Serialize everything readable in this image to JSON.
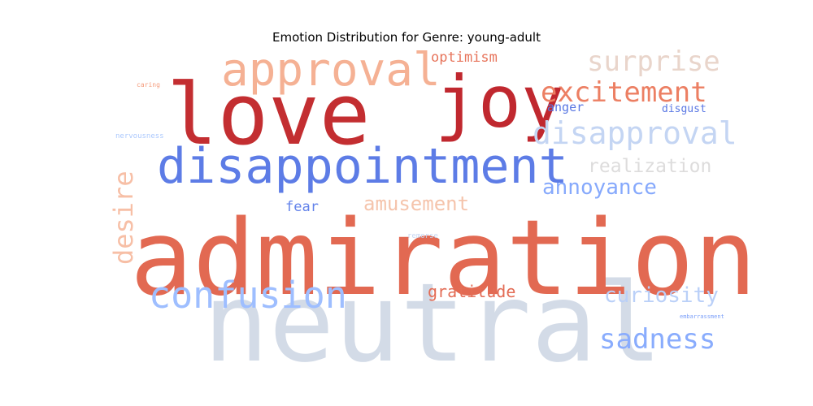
{
  "chart_data": {
    "type": "wordcloud",
    "title": "Emotion Distribution for Genre: young-adult",
    "colormap": "coolwarm",
    "words": [
      {
        "text": "neutral",
        "color": "#d3dbe7"
      },
      {
        "text": "admiration",
        "color": "#e26952"
      },
      {
        "text": "love",
        "color": "#c32e31"
      },
      {
        "text": "disappointment",
        "color": "#5d7ce6"
      },
      {
        "text": "joy",
        "color": "#c0282f"
      },
      {
        "text": "approval",
        "color": "#f5b194"
      },
      {
        "text": "confusion",
        "color": "#9ebeff"
      },
      {
        "text": "excitement",
        "color": "#ec7f63"
      },
      {
        "text": "disapproval",
        "color": "#c4d5f3"
      },
      {
        "text": "surprise",
        "color": "#e9d5cb"
      },
      {
        "text": "sadness",
        "color": "#89acfd"
      },
      {
        "text": "desire",
        "color": "#f7bfa6"
      },
      {
        "text": "annoyance",
        "color": "#86a9fc"
      },
      {
        "text": "curiosity",
        "color": "#bad0f8"
      },
      {
        "text": "amusement",
        "color": "#f5c4ac"
      },
      {
        "text": "realization",
        "color": "#dddcdc"
      },
      {
        "text": "gratitude",
        "color": "#e36c55"
      },
      {
        "text": "optimism",
        "color": "#e7745b"
      },
      {
        "text": "fear",
        "color": "#6282ea"
      },
      {
        "text": "anger",
        "color": "#5977e3"
      },
      {
        "text": "disgust",
        "color": "#5a78e4"
      },
      {
        "text": "nervousness",
        "color": "#abc8fd"
      },
      {
        "text": "caring",
        "color": "#f59d7e"
      },
      {
        "text": "remorse",
        "color": "#c5d6f2"
      },
      {
        "text": "embarrassment",
        "color": "#7b9ff9"
      }
    ]
  }
}
